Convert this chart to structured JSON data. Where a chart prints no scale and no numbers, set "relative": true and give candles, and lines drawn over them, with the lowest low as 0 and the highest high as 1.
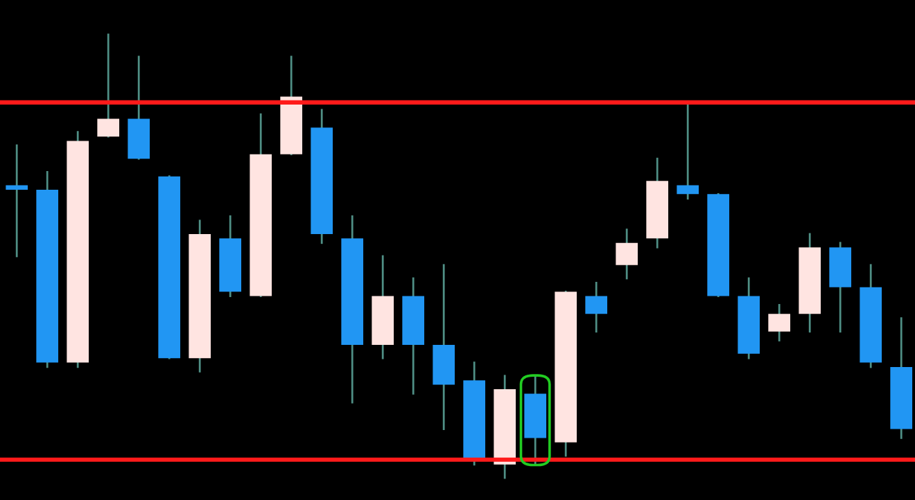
{
  "chart_data": {
    "type": "candlestick",
    "relative": true,
    "categories": [
      null,
      null,
      null,
      null,
      null,
      null,
      null,
      null,
      null,
      null,
      null,
      null,
      null,
      null,
      null,
      null,
      null,
      null,
      null,
      null,
      null,
      null,
      null,
      null,
      null,
      null,
      null,
      null,
      null,
      null
    ],
    "ohlc": [
      [
        0.66,
        0.75,
        0.5,
        0.65
      ],
      [
        0.65,
        0.69,
        0.25,
        0.26
      ],
      [
        0.26,
        0.78,
        0.25,
        0.76
      ],
      [
        0.77,
        1.0,
        0.77,
        0.81
      ],
      [
        0.81,
        0.95,
        0.72,
        0.72
      ],
      [
        0.68,
        0.68,
        0.27,
        0.27
      ],
      [
        0.27,
        0.58,
        0.24,
        0.55
      ],
      [
        0.54,
        0.59,
        0.41,
        0.42
      ],
      [
        0.41,
        0.82,
        0.41,
        0.73
      ],
      [
        0.73,
        0.95,
        0.73,
        0.86
      ],
      [
        0.79,
        0.83,
        0.53,
        0.55
      ],
      [
        0.54,
        0.59,
        0.17,
        0.3
      ],
      [
        0.3,
        0.5,
        0.27,
        0.41
      ],
      [
        0.41,
        0.45,
        0.19,
        0.3
      ],
      [
        0.3,
        0.48,
        0.11,
        0.21
      ],
      [
        0.22,
        0.26,
        0.03,
        0.04
      ],
      [
        0.03,
        0.23,
        0.0,
        0.2
      ],
      [
        0.19,
        0.23,
        0.03,
        0.09
      ],
      [
        0.08,
        0.42,
        0.05,
        0.42
      ],
      [
        0.41,
        0.44,
        0.33,
        0.37
      ],
      [
        0.48,
        0.56,
        0.45,
        0.53
      ],
      [
        0.54,
        0.72,
        0.52,
        0.67
      ],
      [
        0.66,
        0.84,
        0.63,
        0.64
      ],
      [
        0.64,
        0.64,
        0.41,
        0.41
      ],
      [
        0.41,
        0.45,
        0.27,
        0.28
      ],
      [
        0.33,
        0.39,
        0.31,
        0.37
      ],
      [
        0.37,
        0.55,
        0.33,
        0.52
      ],
      [
        0.52,
        0.53,
        0.33,
        0.43
      ],
      [
        0.43,
        0.48,
        0.25,
        0.26
      ],
      [
        0.25,
        0.36,
        0.09,
        0.11
      ]
    ],
    "colors": [
      "#2196f3",
      "#2196f3",
      "#ffe4e1",
      "#ffe4e1",
      "#2196f3",
      "#2196f3",
      "#ffe4e1",
      "#2196f3",
      "#ffe4e1",
      "#ffe4e1",
      "#2196f3",
      "#2196f3",
      "#ffe4e1",
      "#2196f3",
      "#2196f3",
      "#2196f3",
      "#ffe4e1",
      "#2196f3",
      "#ffe4e1",
      "#2196f3",
      "#ffe4e1",
      "#ffe4e1",
      "#2196f3",
      "#2196f3",
      "#2196f3",
      "#ffe4e1",
      "#ffe4e1",
      "#2196f3",
      "#2196f3",
      "#2196f3"
    ],
    "ref_lines": [
      {
        "axis": "y",
        "value": 0.847,
        "color": "#ff1a1a"
      },
      {
        "axis": "y",
        "value": 0.041,
        "color": "#ff1a1a"
      }
    ]
  }
}
